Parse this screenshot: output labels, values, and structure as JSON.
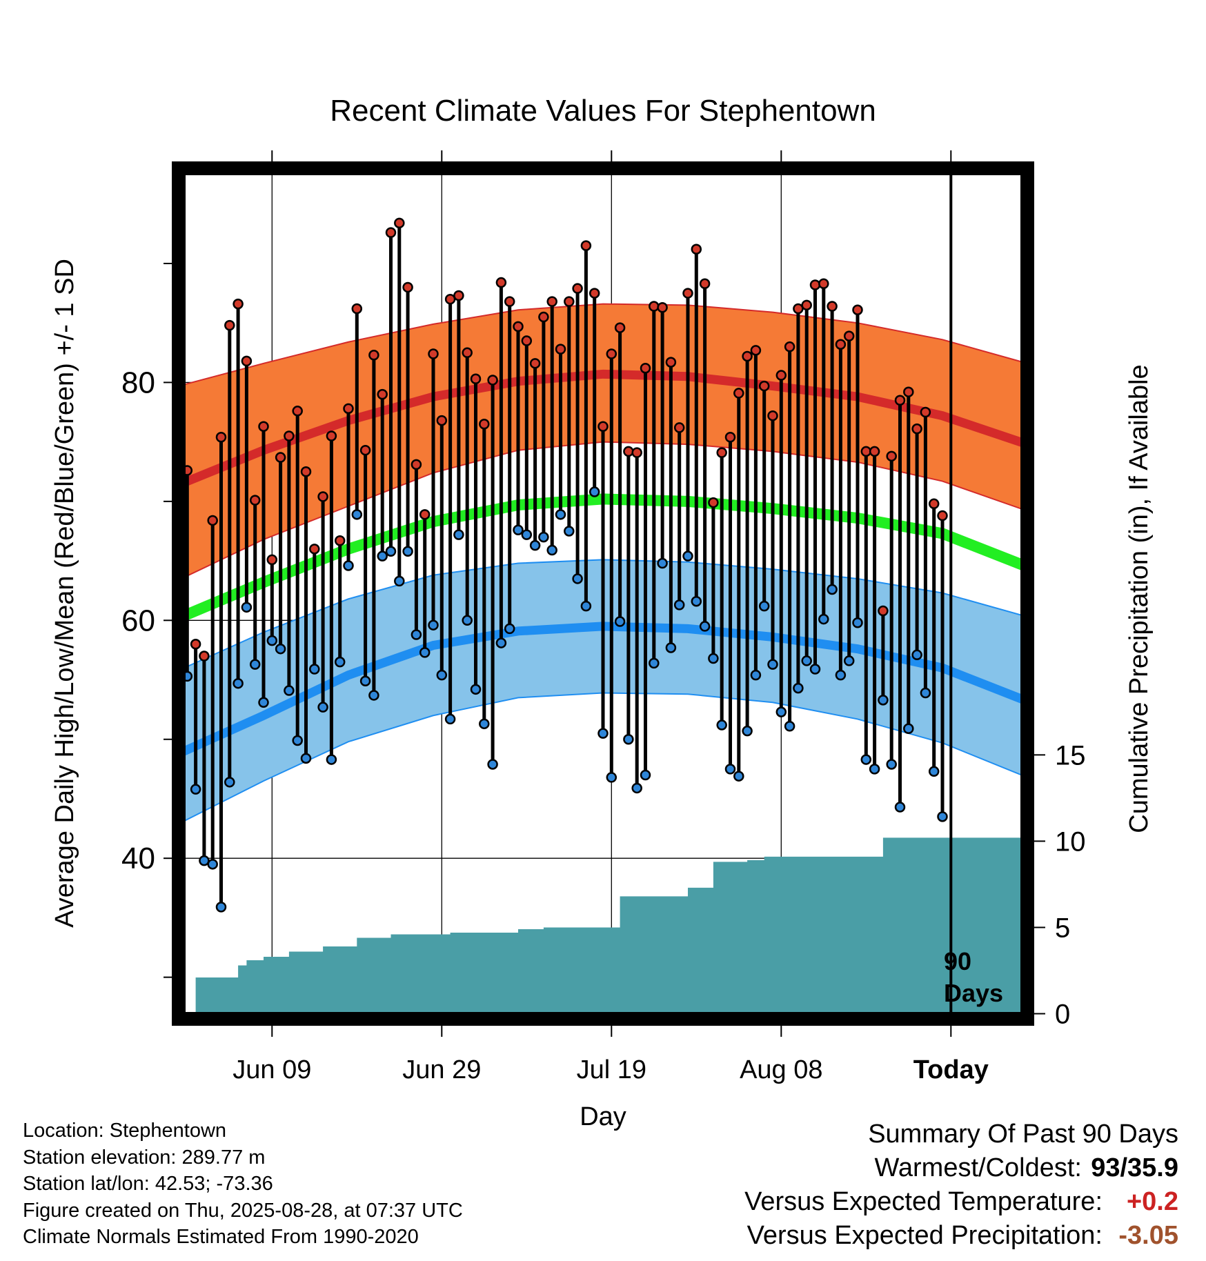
{
  "chart_data": {
    "type": "line",
    "title": "Recent Climate Values For Stephentown",
    "xlabel": "Day",
    "ylabel": "Average Daily High/Low/Mean (Red/Blue/Green) +/- 1 SD",
    "y2label": "Cumulative Precipitation (in), If Available",
    "ylim": [
      26.5,
      98
    ],
    "y_ticks": [
      40,
      60,
      80
    ],
    "y2lim": [
      -0.3,
      49
    ],
    "y2_ticks": [
      0,
      5,
      10,
      15
    ],
    "x_ticks": [
      {
        "date": "2025-06-09",
        "label": "Jun 09"
      },
      {
        "date": "2025-06-29",
        "label": "Jun 29"
      },
      {
        "date": "2025-07-19",
        "label": "Jul 19"
      },
      {
        "date": "2025-08-08",
        "label": "Aug 08"
      },
      {
        "date": "2025-08-28",
        "label": "Today"
      }
    ],
    "x_range": [
      "2025-05-29",
      "2025-09-06"
    ],
    "today": "2025-08-28",
    "today_label": [
      "90",
      "Days"
    ],
    "grid": true,
    "normal_high": {
      "x": [
        "2025-05-29",
        "2025-06-08",
        "2025-06-18",
        "2025-06-28",
        "2025-07-08",
        "2025-07-18",
        "2025-07-28",
        "2025-08-07",
        "2025-08-17",
        "2025-08-27",
        "2025-09-06"
      ],
      "mean": [
        71.4,
        74.3,
        76.8,
        78.8,
        80.1,
        80.7,
        80.5,
        79.7,
        78.8,
        77.2,
        74.8
      ],
      "upper": [
        79.7,
        81.6,
        83.4,
        84.9,
        86.1,
        86.6,
        86.5,
        85.9,
        85.0,
        83.6,
        81.6
      ],
      "lower": [
        63.4,
        66.8,
        69.6,
        72.4,
        74.3,
        75.0,
        74.8,
        74.2,
        73.3,
        71.7,
        69.2
      ]
    },
    "normal_low": {
      "x": [
        "2025-05-29",
        "2025-06-08",
        "2025-06-18",
        "2025-06-28",
        "2025-07-08",
        "2025-07-18",
        "2025-07-28",
        "2025-08-07",
        "2025-08-17",
        "2025-08-27",
        "2025-09-06"
      ],
      "mean": [
        48.8,
        52.0,
        55.4,
        57.9,
        59.1,
        59.5,
        59.3,
        58.6,
        57.6,
        56.0,
        53.2
      ],
      "upper": [
        55.8,
        59.0,
        61.8,
        63.8,
        64.8,
        65.1,
        64.9,
        64.3,
        63.5,
        62.3,
        60.3
      ],
      "lower": [
        42.9,
        46.5,
        49.8,
        52.0,
        53.5,
        53.9,
        53.8,
        53.1,
        51.7,
        49.7,
        46.8
      ]
    },
    "normal_mean": {
      "x": [
        "2025-05-29",
        "2025-06-08",
        "2025-06-18",
        "2025-06-28",
        "2025-07-08",
        "2025-07-18",
        "2025-07-28",
        "2025-08-07",
        "2025-08-17",
        "2025-08-27",
        "2025-09-06"
      ],
      "values": [
        60.2,
        63.2,
        66.0,
        68.3,
        69.7,
        70.2,
        70.0,
        69.4,
        68.6,
        67.3,
        64.5
      ]
    },
    "series": [
      {
        "name": "High",
        "x": [
          "2025-05-30",
          "2025-05-31",
          "2025-06-01",
          "2025-06-02",
          "2025-06-03",
          "2025-06-04",
          "2025-06-05",
          "2025-06-06",
          "2025-06-07",
          "2025-06-08",
          "2025-06-09",
          "2025-06-10",
          "2025-06-11",
          "2025-06-12",
          "2025-06-13",
          "2025-06-14",
          "2025-06-15",
          "2025-06-16",
          "2025-06-17",
          "2025-06-18",
          "2025-06-19",
          "2025-06-20",
          "2025-06-21",
          "2025-06-22",
          "2025-06-23",
          "2025-06-24",
          "2025-06-25",
          "2025-06-26",
          "2025-06-27",
          "2025-06-28",
          "2025-06-29",
          "2025-06-30",
          "2025-07-01",
          "2025-07-02",
          "2025-07-03",
          "2025-07-04",
          "2025-07-05",
          "2025-07-06",
          "2025-07-07",
          "2025-07-08",
          "2025-07-09",
          "2025-07-10",
          "2025-07-11",
          "2025-07-12",
          "2025-07-13",
          "2025-07-14",
          "2025-07-15",
          "2025-07-16",
          "2025-07-17",
          "2025-07-18",
          "2025-07-19",
          "2025-07-20",
          "2025-07-21",
          "2025-07-22",
          "2025-07-23",
          "2025-07-24",
          "2025-07-25",
          "2025-07-26",
          "2025-07-27",
          "2025-07-28",
          "2025-07-29",
          "2025-07-30",
          "2025-07-31",
          "2025-08-01",
          "2025-08-02",
          "2025-08-03",
          "2025-08-04",
          "2025-08-05",
          "2025-08-06",
          "2025-08-07",
          "2025-08-08",
          "2025-08-09",
          "2025-08-10",
          "2025-08-11",
          "2025-08-12",
          "2025-08-13",
          "2025-08-14",
          "2025-08-15",
          "2025-08-16",
          "2025-08-17",
          "2025-08-18",
          "2025-08-19",
          "2025-08-20",
          "2025-08-21",
          "2025-08-22",
          "2025-08-23",
          "2025-08-24",
          "2025-08-25",
          "2025-08-26",
          "2025-08-27"
        ],
        "values": [
          72.6,
          58.0,
          57.0,
          68.4,
          75.4,
          84.8,
          86.6,
          81.8,
          70.1,
          76.3,
          65.1,
          73.7,
          75.5,
          77.6,
          72.5,
          66.0,
          70.4,
          75.5,
          66.7,
          77.8,
          86.2,
          74.3,
          82.3,
          79.0,
          92.6,
          93.4,
          88.0,
          73.1,
          68.9,
          82.4,
          76.8,
          87.0,
          87.3,
          82.5,
          80.3,
          76.5,
          80.2,
          88.4,
          86.8,
          84.7,
          83.5,
          81.6,
          85.5,
          86.8,
          82.8,
          86.8,
          87.9,
          91.5,
          87.5,
          76.3,
          82.4,
          84.6,
          74.2,
          74.1,
          81.2,
          86.4,
          86.3,
          81.7,
          76.2,
          87.5,
          91.2,
          88.3,
          69.9,
          74.1,
          75.4,
          79.1,
          82.2,
          82.7,
          79.7,
          77.2,
          80.6,
          83.0,
          86.2,
          86.5,
          88.2,
          88.3,
          86.4,
          83.2,
          83.9,
          86.1,
          74.2,
          74.2,
          60.8,
          73.8,
          78.5,
          79.2,
          76.1,
          77.5,
          69.8,
          68.8
        ]
      },
      {
        "name": "Low",
        "x": [
          "2025-05-30",
          "2025-05-31",
          "2025-06-01",
          "2025-06-02",
          "2025-06-03",
          "2025-06-04",
          "2025-06-05",
          "2025-06-06",
          "2025-06-07",
          "2025-06-08",
          "2025-06-09",
          "2025-06-10",
          "2025-06-11",
          "2025-06-12",
          "2025-06-13",
          "2025-06-14",
          "2025-06-15",
          "2025-06-16",
          "2025-06-17",
          "2025-06-18",
          "2025-06-19",
          "2025-06-20",
          "2025-06-21",
          "2025-06-22",
          "2025-06-23",
          "2025-06-24",
          "2025-06-25",
          "2025-06-26",
          "2025-06-27",
          "2025-06-28",
          "2025-06-29",
          "2025-06-30",
          "2025-07-01",
          "2025-07-02",
          "2025-07-03",
          "2025-07-04",
          "2025-07-05",
          "2025-07-06",
          "2025-07-07",
          "2025-07-08",
          "2025-07-09",
          "2025-07-10",
          "2025-07-11",
          "2025-07-12",
          "2025-07-13",
          "2025-07-14",
          "2025-07-15",
          "2025-07-16",
          "2025-07-17",
          "2025-07-18",
          "2025-07-19",
          "2025-07-20",
          "2025-07-21",
          "2025-07-22",
          "2025-07-23",
          "2025-07-24",
          "2025-07-25",
          "2025-07-26",
          "2025-07-27",
          "2025-07-28",
          "2025-07-29",
          "2025-07-30",
          "2025-07-31",
          "2025-08-01",
          "2025-08-02",
          "2025-08-03",
          "2025-08-04",
          "2025-08-05",
          "2025-08-06",
          "2025-08-07",
          "2025-08-08",
          "2025-08-09",
          "2025-08-10",
          "2025-08-11",
          "2025-08-12",
          "2025-08-13",
          "2025-08-14",
          "2025-08-15",
          "2025-08-16",
          "2025-08-17",
          "2025-08-18",
          "2025-08-19",
          "2025-08-20",
          "2025-08-21",
          "2025-08-22",
          "2025-08-23",
          "2025-08-24",
          "2025-08-25",
          "2025-08-26",
          "2025-08-27"
        ],
        "values": [
          55.3,
          45.8,
          39.8,
          39.5,
          35.9,
          46.4,
          54.7,
          61.1,
          56.3,
          53.1,
          58.3,
          57.6,
          54.1,
          49.9,
          48.4,
          55.9,
          52.7,
          48.3,
          56.5,
          64.6,
          68.9,
          54.9,
          53.7,
          65.4,
          65.8,
          63.3,
          65.8,
          58.8,
          57.3,
          59.6,
          55.4,
          51.7,
          67.2,
          60.0,
          54.2,
          51.3,
          47.9,
          58.1,
          59.3,
          67.6,
          67.2,
          66.3,
          67.0,
          65.9,
          68.9,
          67.5,
          63.5,
          61.2,
          70.8,
          50.5,
          46.8,
          59.9,
          50.0,
          45.9,
          47.0,
          56.4,
          64.8,
          57.7,
          61.3,
          65.4,
          61.6,
          59.5,
          56.8,
          51.2,
          47.5,
          46.9,
          50.7,
          55.4,
          61.2,
          56.3,
          52.3,
          51.1,
          54.3,
          56.6,
          55.9,
          60.1,
          62.6,
          55.4,
          56.6,
          59.8,
          48.3,
          47.5,
          53.3,
          47.9,
          44.3,
          50.9,
          57.1,
          53.9,
          47.3,
          43.5
        ]
      }
    ],
    "precip": {
      "x": [
        "2025-05-29",
        "2025-05-31",
        "2025-06-05",
        "2025-06-06",
        "2025-06-08",
        "2025-06-11",
        "2025-06-15",
        "2025-06-19",
        "2025-06-23",
        "2025-06-30",
        "2025-07-08",
        "2025-07-11",
        "2025-07-18",
        "2025-07-20",
        "2025-07-28",
        "2025-07-31",
        "2025-08-04",
        "2025-08-06",
        "2025-08-19",
        "2025-08-20",
        "2025-09-06"
      ],
      "values": [
        0.0,
        2.1,
        2.8,
        3.1,
        3.3,
        3.6,
        3.9,
        4.4,
        4.6,
        4.7,
        4.9,
        5.0,
        5.0,
        6.8,
        7.3,
        8.8,
        8.9,
        9.1,
        9.1,
        10.2,
        10.2
      ]
    }
  },
  "footer": {
    "location": "Location: Stephentown",
    "elevation": "Station elevation: 289.77 m",
    "latlon": "Station lat/lon: 42.53; -73.36",
    "created": "Figure created on Thu, 2025-08-28, at 07:37 UTC",
    "normals": "Climate Normals Estimated From 1990-2020"
  },
  "summary": {
    "heading": "Summary Of Past 90 Days",
    "warm_cold_label": "Warmest/Coldest:",
    "warm_cold_value": "93/35.9",
    "temp_label": "Versus Expected Temperature:",
    "temp_value": "+0.2",
    "precip_label": "Versus Expected Precipitation:",
    "precip_value": "-3.05"
  },
  "colors": {
    "high_band": "#f57a36",
    "high_line": "#d42a2a",
    "low_band": "#86c3ea",
    "low_line": "#1f8ef1",
    "mean_line": "#22ee22",
    "precip": "#4a9ea6",
    "high_dot": "#d23a2a",
    "low_dot": "#2f86d8"
  }
}
